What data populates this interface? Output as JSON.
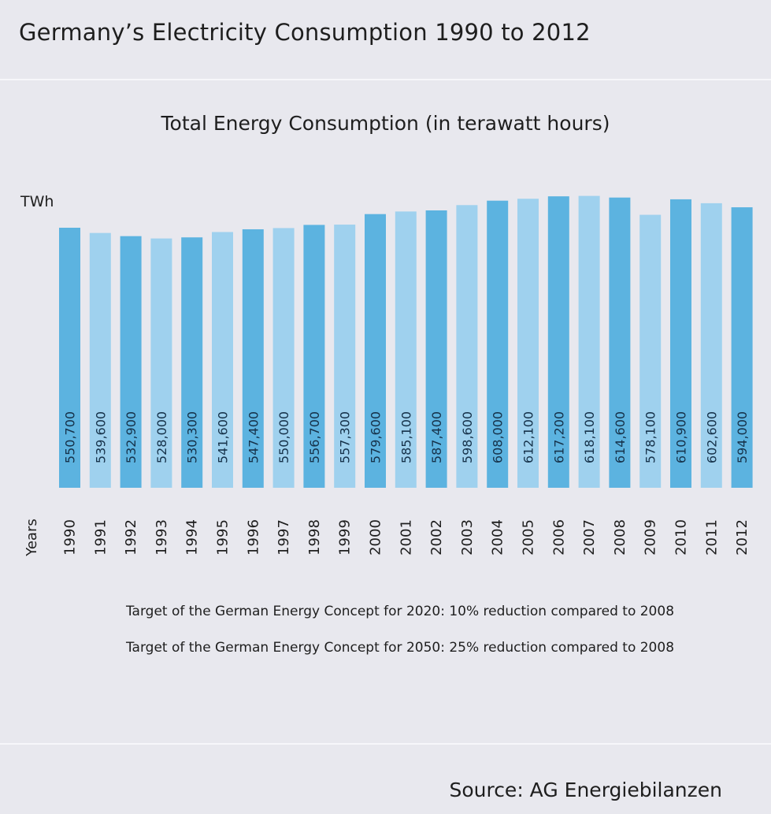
{
  "header": {
    "title": "Germany’s Electricity Consumption 1990 to 2012"
  },
  "colors": {
    "background": "#e8e8ee",
    "bar_dark": "#5cb3e0",
    "bar_light": "#9fd1ee",
    "text": "#1e1e1e",
    "divider": "#f7f7fa"
  },
  "chart_data": {
    "type": "bar",
    "title": "Total Energy Consumption (in terawatt hours)",
    "ylabel": "TWh",
    "xlabel": "Years",
    "categories": [
      "1990",
      "1991",
      "1992",
      "1993",
      "1994",
      "1995",
      "1996",
      "1997",
      "1998",
      "1999",
      "2000",
      "2001",
      "2002",
      "2003",
      "2004",
      "2005",
      "2006",
      "2007",
      "2008",
      "2009",
      "2010",
      "2011",
      "2012"
    ],
    "values": [
      550700,
      539600,
      532900,
      528000,
      530300,
      541600,
      547400,
      550000,
      556700,
      557300,
      579600,
      585100,
      587400,
      598600,
      608000,
      612100,
      617200,
      618100,
      614600,
      578100,
      610900,
      602600,
      594000
    ],
    "value_labels": [
      "550,700",
      "539,600",
      "532,900",
      "528,000",
      "530,300",
      "541,600",
      "547,400",
      "550,000",
      "556,700",
      "557,300",
      "579,600",
      "585,100",
      "587,400",
      "598,600",
      "608,000",
      "612,100",
      "617,200",
      "618,100",
      "614,600",
      "578,100",
      "610,900",
      "602,600",
      "594,000"
    ],
    "grid": false,
    "legend": "none"
  },
  "notes": [
    "Target of the German Energy Concept for 2020: 10% reduction compared to 2008",
    "Target of the German Energy Concept for 2050: 25% reduction compared to 2008"
  ],
  "footer": {
    "source": "Source: AG Energiebilanzen"
  }
}
